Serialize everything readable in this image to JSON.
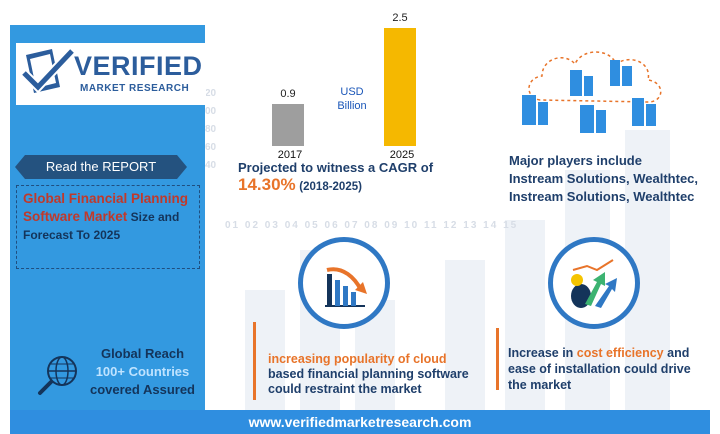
{
  "brand": {
    "name": "VERIFIED",
    "tagline": "MARKET RESEARCH",
    "website": "www.verifiedmarketresearch.com"
  },
  "report": {
    "ribbon_label": "Read the REPORT",
    "title": "Global Financial Planning Software Market",
    "title_rest": " Size and Forecast To 2025"
  },
  "reach": {
    "line1": "Global Reach",
    "line2": "100+ Countries",
    "line3": "covered Assured"
  },
  "chart_data": {
    "type": "bar",
    "categories": [
      "2017",
      "2025"
    ],
    "values": [
      0.9,
      2.5
    ],
    "value_labels": [
      "0.9",
      "2.5"
    ],
    "unit_label": "USD Billion",
    "colors": [
      "#9e9e9e",
      "#f5b800"
    ],
    "ylim": [
      0,
      2.5
    ]
  },
  "cagr": {
    "lead": "Projected to witness a CAGR of",
    "value": "14.30%",
    "period": "(2018-2025)"
  },
  "players": {
    "text": "Major  players include Instream Solutions, Wealthtec, Instream Solutions, Wealthtec"
  },
  "drivers": {
    "restraint_part1": "increasing popularity of cloud",
    "restraint_part2": "based financial planning software could restraint  the market",
    "driver_part1": "Increase in ",
    "driver_part2": "cost efficiency",
    "driver_part3": " and ease of installation could drive the market"
  },
  "background": {
    "numbers": "01 02 03 04 05 06 07 08 09 10 11 12 13 14 15"
  },
  "icons": {
    "logo": "checkmark-document-icon",
    "globe": "globe-search-icon",
    "cloud": "cloud-buildings-icon",
    "chart": "bar-chart-down-icon",
    "growth": "growth-arrows-icon"
  },
  "colors": {
    "panel": "#3399e0",
    "ribbon": "#24527f",
    "accent": "#e8742a",
    "navy": "#1f3f6b",
    "circle": "#2f78c4"
  }
}
